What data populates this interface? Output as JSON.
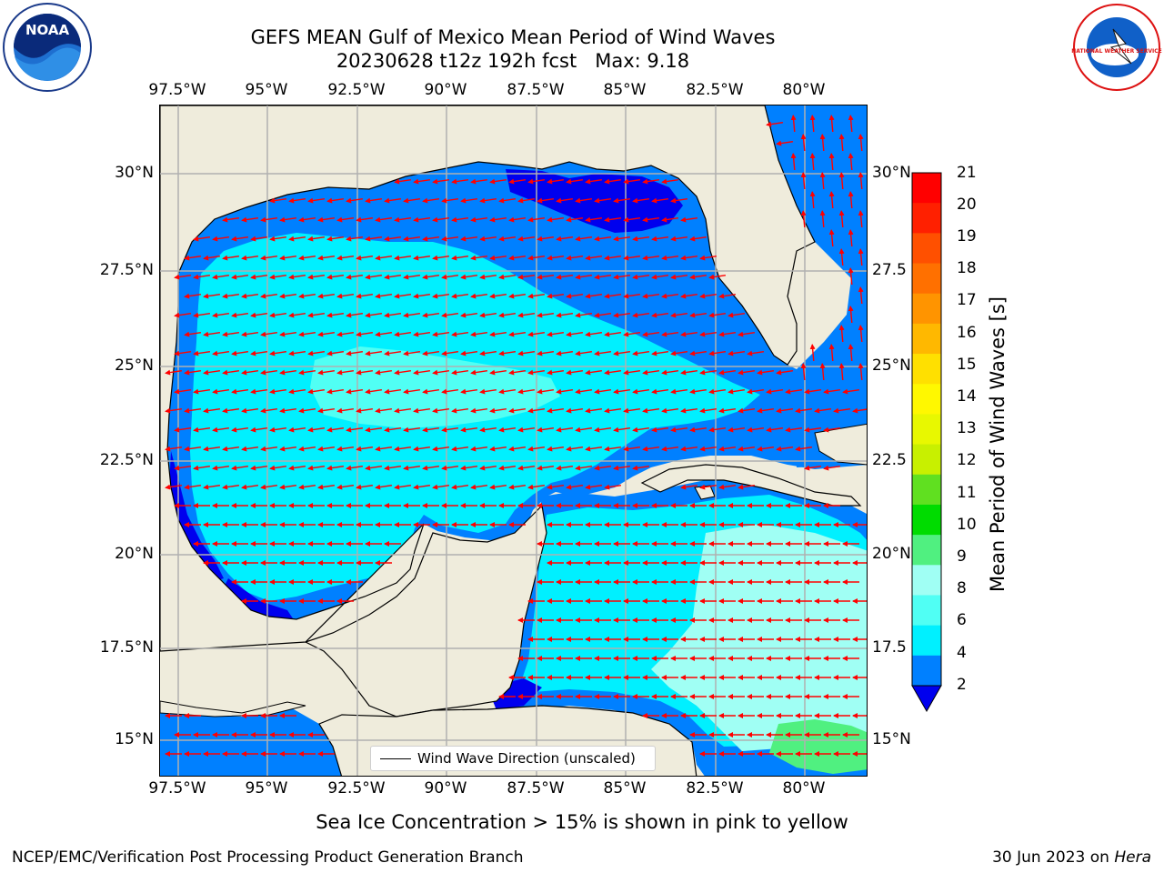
{
  "title_line1": "GEFS MEAN Gulf of Mexico Mean Period of Wind Waves",
  "title_line2": "20230628 t12z 192h fcst   Max: 9.18",
  "lon_ticks": [
    "97.5°W",
    "95°W",
    "92.5°W",
    "90°W",
    "87.5°W",
    "85°W",
    "82.5°W",
    "80°W"
  ],
  "lat_ticks": [
    "30°N",
    "27.5°N",
    "25°N",
    "22.5°N",
    "20°N",
    "17.5°N",
    "15°N"
  ],
  "lat_ticks_right": [
    "30°N",
    "27.5",
    "25°N",
    "22.5",
    "20°N",
    "17.5",
    "15°N"
  ],
  "legend_label": "Wind Wave Direction (unscaled)",
  "colorbar": {
    "label": "Mean Period of Wind Waves [s]",
    "ticks": [
      "21",
      "20",
      "19",
      "18",
      "17",
      "16",
      "15",
      "14",
      "13",
      "12",
      "11",
      "10",
      "9",
      "8",
      "6",
      "4",
      "2"
    ],
    "bins_top_to_bottom": [
      "#ff0000",
      "#ff2000",
      "#ff5000",
      "#ff7000",
      "#ff9400",
      "#ffb800",
      "#ffe000",
      "#fff800",
      "#e8f800",
      "#c8f000",
      "#60e020",
      "#00dc00",
      "#50f080",
      "#a0fff4",
      "#50fff4",
      "#00f0ff",
      "#0080ff"
    ],
    "below_min_color": "#0000ee"
  },
  "region": {
    "lon_range": [
      -98.0,
      -78.3
    ],
    "lat_range": [
      14.0,
      31.8
    ]
  },
  "colors": {
    "land": "#efecdc",
    "arrow": "#ff0000",
    "coast": "#000000",
    "grid": "#b0b0b0"
  },
  "note": "Sea Ice Concentration > 15% is shown in pink to yellow",
  "footer_left": "NCEP/EMC/Verification Post Processing Product Generation Branch",
  "footer_date": "30 Jun 2023 on",
  "footer_machine": "Hera",
  "logos": {
    "left": "NOAA",
    "right": "NATIONAL WEATHER SERVICE"
  }
}
